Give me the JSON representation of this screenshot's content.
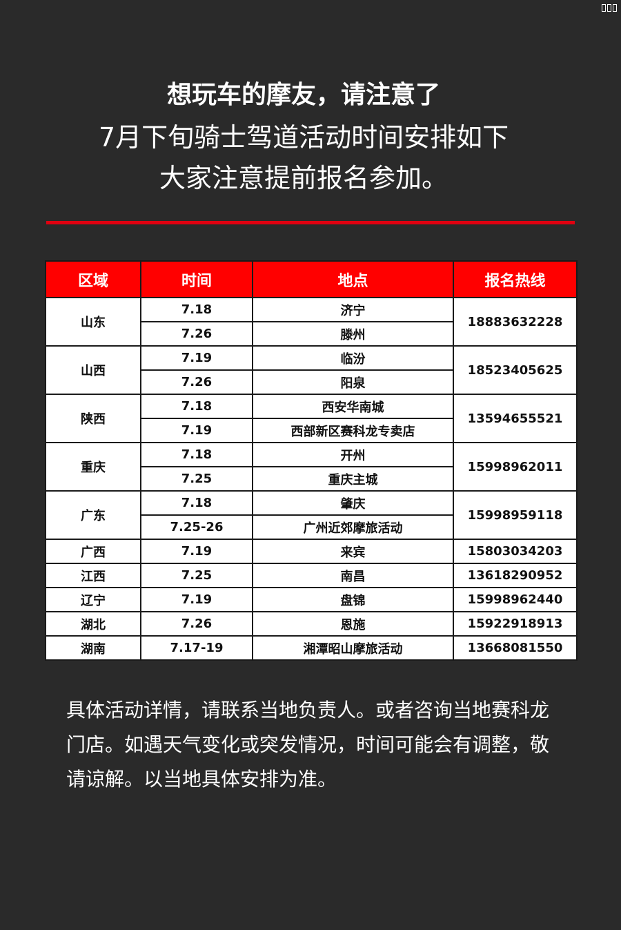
{
  "corner_glyph": "□□□",
  "header": {
    "line1": "想玩车的摩友，请注意了",
    "line2": "7月下旬骑士驾道活动时间安排如下",
    "line3": "大家注意提前报名参加。"
  },
  "colors": {
    "background": "#2a2a2a",
    "accent": "#ff0000"
  },
  "table": {
    "columns": [
      "区域",
      "时间",
      "地点",
      "报名热线"
    ],
    "groups": [
      {
        "region": "山东",
        "phone": "18883632228",
        "events": [
          {
            "time": "7.18",
            "place": "济宁"
          },
          {
            "time": "7.26",
            "place": "滕州"
          }
        ]
      },
      {
        "region": "山西",
        "phone": "18523405625",
        "events": [
          {
            "time": "7.19",
            "place": "临汾"
          },
          {
            "time": "7.26",
            "place": "阳泉"
          }
        ]
      },
      {
        "region": "陕西",
        "phone": "13594655521",
        "events": [
          {
            "time": "7.18",
            "place": "西安华南城"
          },
          {
            "time": "7.19",
            "place": "西部新区赛科龙专卖店"
          }
        ]
      },
      {
        "region": "重庆",
        "phone": "15998962011",
        "events": [
          {
            "time": "7.18",
            "place": "开州"
          },
          {
            "time": "7.25",
            "place": "重庆主城"
          }
        ]
      },
      {
        "region": "广东",
        "phone": "15998959118",
        "events": [
          {
            "time": "7.18",
            "place": "肇庆"
          },
          {
            "time": "7.25-26",
            "place": "广州近郊摩旅活动"
          }
        ]
      },
      {
        "region": "广西",
        "phone": "15803034203",
        "events": [
          {
            "time": "7.19",
            "place": "来宾"
          }
        ]
      },
      {
        "region": "江西",
        "phone": "13618290952",
        "events": [
          {
            "time": "7.25",
            "place": "南昌"
          }
        ]
      },
      {
        "region": "辽宁",
        "phone": "15998962440",
        "events": [
          {
            "time": "7.19",
            "place": "盘锦"
          }
        ]
      },
      {
        "region": "湖北",
        "phone": "15922918913",
        "events": [
          {
            "time": "7.26",
            "place": "恩施"
          }
        ]
      },
      {
        "region": "湖南",
        "phone": "13668081550",
        "events": [
          {
            "time": "7.17-19",
            "place": "湘潭昭山摩旅活动"
          }
        ]
      }
    ]
  },
  "footer": {
    "text": "具体活动详情，请联系当地负责人。或者咨询当地赛科龙门店。如遇天气变化或突发情况，时间可能会有调整，敬请谅解。以当地具体安排为准。"
  }
}
